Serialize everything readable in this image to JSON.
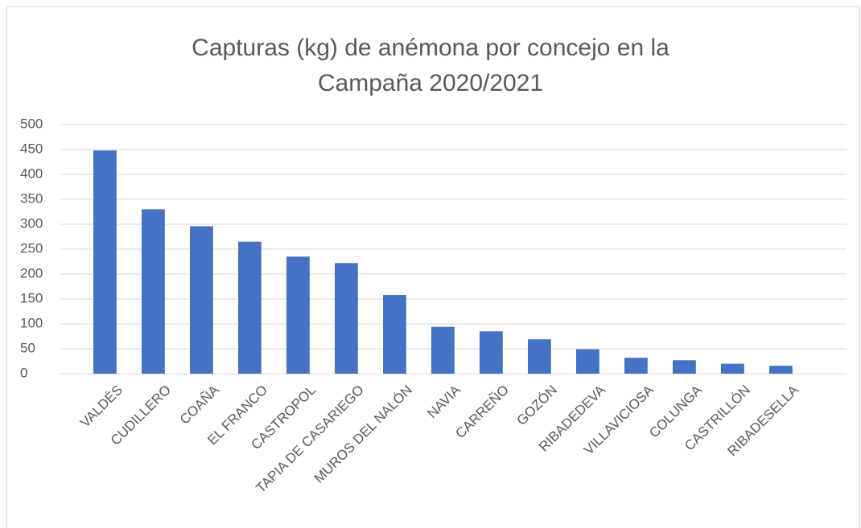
{
  "chart_data": {
    "type": "bar",
    "title": "Capturas (kg) de anémona por concejo en la Campaña 2020/2021",
    "categories": [
      "VALDÉS",
      "CUDILLERO",
      "COAÑA",
      "EL FRANCO",
      "CASTROPOL",
      "TAPIA DE CASARIEGO",
      "MUROS DEL NALÓN",
      "NAVIA",
      "CARREÑO",
      "GOZÓN",
      "RIBADEDEVA",
      "VILLAVICIOSA",
      "COLUNGA",
      "CASTRILLÓN",
      "RIBADESELLA"
    ],
    "values": [
      448,
      330,
      296,
      265,
      235,
      222,
      158,
      94,
      85,
      69,
      49,
      32,
      27,
      20,
      16
    ],
    "color": "#4472c4",
    "ylim": [
      0,
      500
    ],
    "yticks": [
      0,
      50,
      100,
      150,
      200,
      250,
      300,
      350,
      400,
      450,
      500
    ],
    "grid": true
  }
}
